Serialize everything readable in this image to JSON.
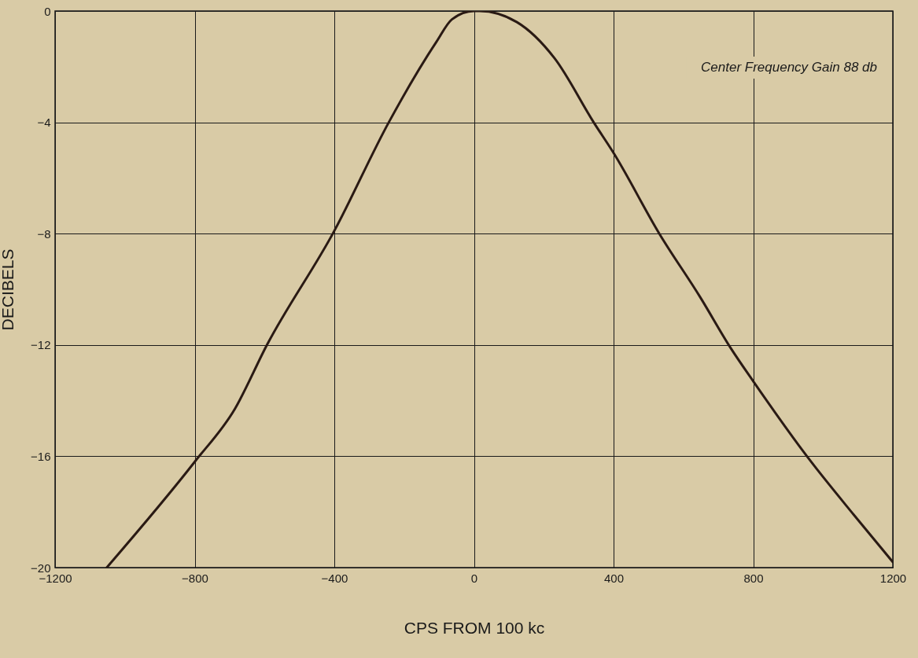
{
  "chart_data": {
    "type": "line",
    "xlabel": "CPS FROM 100 kc",
    "ylabel": "DECIBELS",
    "annotations": [
      "Center Frequency Gain 88 db"
    ],
    "xlim": [
      -1200,
      1200
    ],
    "xticks": [
      -1200,
      -800,
      -400,
      0,
      400,
      800,
      1200
    ],
    "ylim": [
      -20,
      0
    ],
    "yticks": [
      -20,
      -16,
      -12,
      -8,
      -4,
      0
    ],
    "grid": true,
    "series": [
      {
        "color": "#2a1a14",
        "x": [
          -1052,
          -800,
          -685,
          -593,
          -400,
          -244,
          -107,
          -63,
          0,
          16,
          123,
          231,
          343,
          400,
          531,
          649,
          735,
          800,
          960,
          1088,
          1200
        ],
        "values": [
          -20,
          -16.2,
          -14.3,
          -12,
          -7.9,
          -4,
          -1.1,
          -0.3,
          0,
          0,
          -0.4,
          -1.7,
          -4,
          -5.1,
          -8,
          -10.3,
          -12.1,
          -13.3,
          -16.1,
          -18.1,
          -19.8
        ]
      }
    ]
  }
}
